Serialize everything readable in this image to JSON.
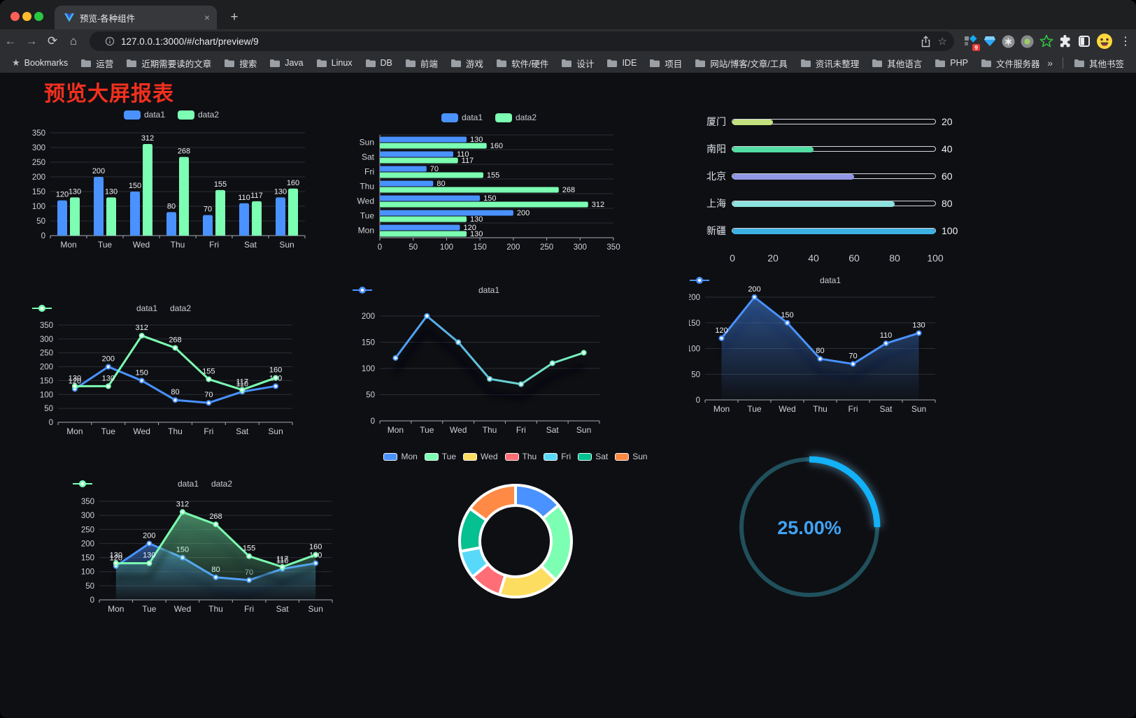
{
  "browser": {
    "tab": {
      "title": "预览-各种组件",
      "close_icon": "×"
    },
    "new_tab_icon": "+",
    "nav": {
      "back": "←",
      "forward": "→",
      "reload": "⟳",
      "home": "⌂"
    },
    "omnibox": {
      "url": "127.0.0.1:3000/#/chart/preview/9"
    },
    "extensions_badge": "9",
    "menu_icon": "⋮",
    "bookmarks_bar": {
      "root_label": "Bookmarks",
      "folders": [
        "运营",
        "近期需要读的文章",
        "搜索",
        "Java",
        "Linux",
        "DB",
        "前端",
        "游戏",
        "软件/硬件",
        "设计",
        "IDE",
        "项目",
        "网站/博客/文章/工具",
        "资讯未整理",
        "其他语言",
        "PHP",
        "文件服务器"
      ],
      "overflow_chevron": "»",
      "other_bookmarks": "其他书签"
    }
  },
  "page": {
    "title": "预览大屏报表",
    "title_color": "#f2301e",
    "background": "#0e0f13"
  },
  "chart_data": [
    {
      "id": "bar",
      "type": "bar",
      "categories": [
        "Mon",
        "Tue",
        "Wed",
        "Thu",
        "Fri",
        "Sat",
        "Sun"
      ],
      "series": [
        {
          "name": "data1",
          "color": "#4992ff",
          "values": [
            120,
            200,
            150,
            80,
            70,
            110,
            130
          ]
        },
        {
          "name": "data2",
          "color": "#7cffb2",
          "values": [
            130,
            130,
            312,
            268,
            155,
            117,
            160
          ]
        }
      ],
      "ylim": [
        0,
        350
      ],
      "ystep": 50,
      "legend_position": "top",
      "grid": true
    },
    {
      "id": "hbar",
      "type": "bar-horizontal",
      "categories": [
        "Mon",
        "Tue",
        "Wed",
        "Thu",
        "Fri",
        "Sat",
        "Sun"
      ],
      "series": [
        {
          "name": "data1",
          "color": "#4992ff",
          "values": [
            120,
            200,
            150,
            80,
            70,
            110,
            130
          ]
        },
        {
          "name": "data2",
          "color": "#7cffb2",
          "values": [
            130,
            130,
            312,
            268,
            155,
            117,
            160
          ]
        }
      ],
      "xlim": [
        0,
        350
      ],
      "xstep": 50,
      "legend_position": "top"
    },
    {
      "id": "progress",
      "type": "bar-progress",
      "xlim": [
        0,
        100
      ],
      "xticks": [
        0,
        20,
        40,
        60,
        80,
        100
      ],
      "items": [
        {
          "label": "厦门",
          "value": 20,
          "color": "#c3e17e"
        },
        {
          "label": "南阳",
          "value": 40,
          "color": "#52dda2"
        },
        {
          "label": "北京",
          "value": 60,
          "color": "#9196e6"
        },
        {
          "label": "上海",
          "value": 80,
          "color": "#8be2df"
        },
        {
          "label": "新疆",
          "value": 100,
          "color": "#3cb1e3"
        }
      ]
    },
    {
      "id": "line-dual",
      "type": "line",
      "categories": [
        "Mon",
        "Tue",
        "Wed",
        "Thu",
        "Fri",
        "Sat",
        "Sun"
      ],
      "series": [
        {
          "name": "data1",
          "color": "#4992ff",
          "values": [
            120,
            200,
            150,
            80,
            70,
            110,
            130
          ]
        },
        {
          "name": "data2",
          "color": "#7cffb2",
          "values": [
            130,
            130,
            312,
            268,
            155,
            117,
            160
          ]
        }
      ],
      "ylim": [
        0,
        350
      ],
      "ystep": 50,
      "data_labels": true
    },
    {
      "id": "line-gradient",
      "type": "line",
      "categories": [
        "Mon",
        "Tue",
        "Wed",
        "Thu",
        "Fri",
        "Sat",
        "Sun"
      ],
      "series": [
        {
          "name": "data1",
          "color_start": "#4992ff",
          "color_end": "#7cffb2",
          "values": [
            120,
            200,
            150,
            80,
            70,
            110,
            130
          ]
        }
      ],
      "ylim": [
        0,
        200
      ],
      "ystep": 50,
      "data_labels": false
    },
    {
      "id": "line-area",
      "type": "area",
      "categories": [
        "Mon",
        "Tue",
        "Wed",
        "Thu",
        "Fri",
        "Sat",
        "Sun"
      ],
      "series": [
        {
          "name": "data1",
          "color": "#4992ff",
          "values": [
            120,
            200,
            150,
            80,
            70,
            110,
            130
          ]
        }
      ],
      "ylim": [
        0,
        200
      ],
      "ystep": 50,
      "data_labels": true
    },
    {
      "id": "area-dual",
      "type": "area",
      "categories": [
        "Mon",
        "Tue",
        "Wed",
        "Thu",
        "Fri",
        "Sat",
        "Sun"
      ],
      "series": [
        {
          "name": "data1",
          "color": "#4992ff",
          "values": [
            120,
            200,
            150,
            80,
            70,
            110,
            130
          ]
        },
        {
          "name": "data2",
          "color": "#7cffb2",
          "values": [
            130,
            130,
            312,
            268,
            155,
            117,
            160
          ]
        }
      ],
      "ylim": [
        0,
        350
      ],
      "ystep": 50,
      "data_labels": true
    },
    {
      "id": "donut",
      "type": "pie",
      "items": [
        {
          "label": "Mon",
          "value": 120,
          "color": "#4992ff"
        },
        {
          "label": "Tue",
          "value": 200,
          "color": "#7cffb2"
        },
        {
          "label": "Wed",
          "value": 150,
          "color": "#fddd60"
        },
        {
          "label": "Thu",
          "value": 80,
          "color": "#ff6e76"
        },
        {
          "label": "Fri",
          "value": 70,
          "color": "#58d9f9"
        },
        {
          "label": "Sat",
          "value": 110,
          "color": "#05c091"
        },
        {
          "label": "Sun",
          "value": 130,
          "color": "#ff8a45"
        }
      ]
    },
    {
      "id": "gauge",
      "type": "gauge",
      "value_label": "25.00%",
      "percent": 25,
      "arc_color": "#12b1f8",
      "track_color": "#20505c",
      "text_color": "#41a3f4"
    }
  ]
}
